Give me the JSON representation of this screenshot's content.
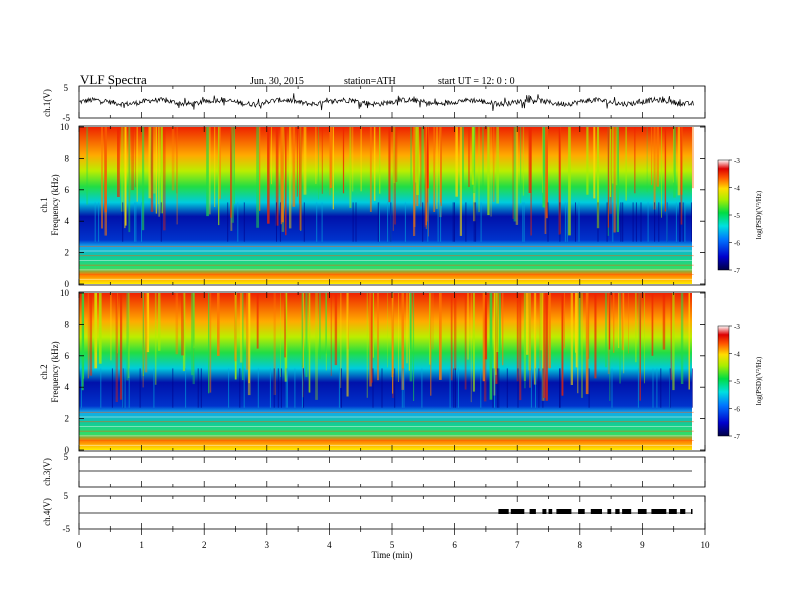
{
  "header": {
    "title": "VLF  Spectra",
    "date": "Jun. 30, 2015",
    "station": "station=ATH",
    "start": "start  UT  =     12: 0   : 0"
  },
  "chart_data": [
    {
      "type": "line",
      "name": "ch1-waveform",
      "ylabel": "ch.1(V)",
      "ylim": [
        -5,
        5
      ],
      "yticks": [
        "5",
        "-5"
      ],
      "xlim": [
        0,
        10
      ]
    },
    {
      "type": "heatmap",
      "name": "ch1-spectrogram",
      "ylabel": "ch.1\nFrequency  (kHz)",
      "ylim": [
        0,
        10
      ],
      "yticks": [
        "0",
        "2",
        "4",
        "6",
        "8",
        "10"
      ],
      "data_end_min": 9.82,
      "colorbar": {
        "label": "log(PSD)(V²/Hz)",
        "range": [
          -7,
          -3
        ],
        "ticks": [
          "-3",
          "-4",
          "-5",
          "-6",
          "-7"
        ]
      }
    },
    {
      "type": "heatmap",
      "name": "ch2-spectrogram",
      "ylabel": "ch.2\nFrequency  (kHz)",
      "ylim": [
        0,
        10
      ],
      "yticks": [
        "0",
        "2",
        "4",
        "6",
        "8",
        "10"
      ],
      "data_end_min": 9.82,
      "colorbar": {
        "label": "log(PSD)(V²/Hz)",
        "range": [
          -7,
          -3
        ],
        "ticks": [
          "-3",
          "-4",
          "-5",
          "-6",
          "-7"
        ]
      }
    },
    {
      "type": "line",
      "name": "ch3-waveform",
      "ylabel": "ch.3(V)",
      "ylim": [
        -5,
        5
      ],
      "yticks": [
        "5"
      ]
    },
    {
      "type": "line",
      "name": "ch4-waveform",
      "ylabel": "ch.4(V)",
      "ylim": [
        -5,
        5
      ],
      "yticks": [
        "5",
        "-5"
      ],
      "pulse_span_min": [
        6.7,
        9.8
      ]
    }
  ],
  "xaxis": {
    "label": "Time  (min)",
    "ticks": [
      "0",
      "1",
      "2",
      "3",
      "4",
      "5",
      "6",
      "7",
      "8",
      "9",
      "10"
    ],
    "xlim": [
      0,
      10
    ]
  }
}
